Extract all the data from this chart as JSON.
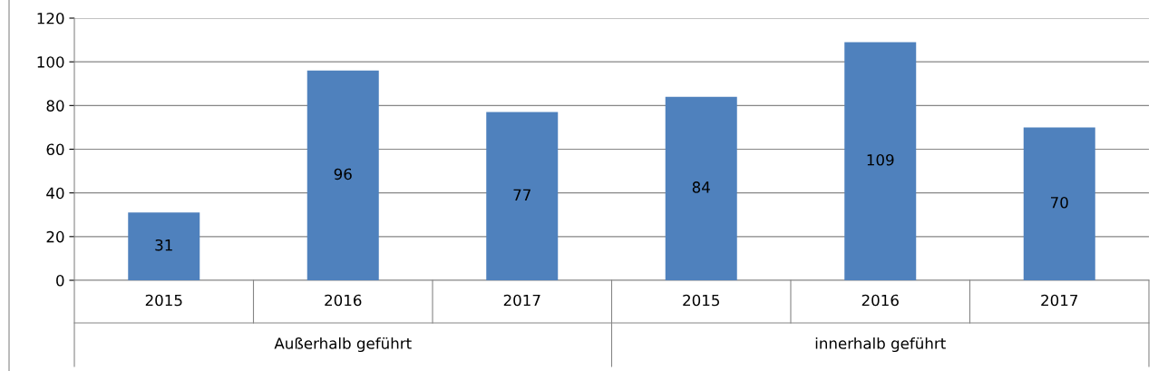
{
  "chart_data": {
    "type": "bar",
    "categories": [
      "2015",
      "2016",
      "2017",
      "2015",
      "2016",
      "2017"
    ],
    "values": [
      31,
      96,
      77,
      84,
      109,
      70
    ],
    "color": "#4f81bd",
    "ylim": [
      0,
      120
    ],
    "yticks": [
      0,
      20,
      40,
      60,
      80,
      100,
      120
    ],
    "grid": "y",
    "data_labels": true,
    "annotations": [
      "Außerhalb geführt",
      "innerhalb geführt"
    ]
  }
}
